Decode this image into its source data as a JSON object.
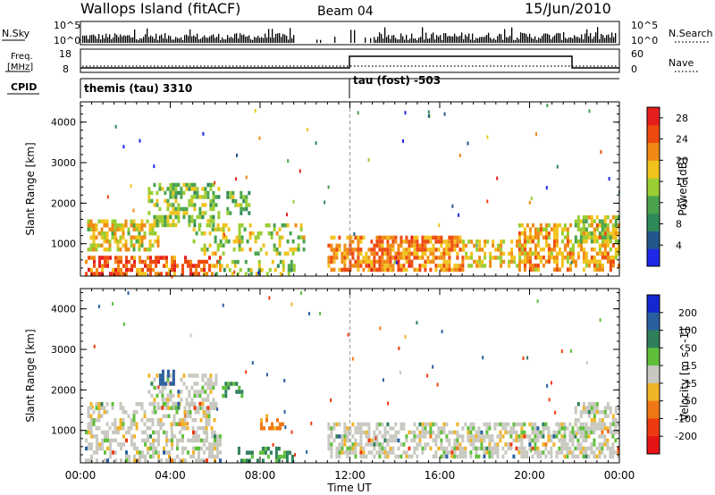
{
  "header": {
    "station": "Wallops Island (fitACF)",
    "beam": "Beam 04",
    "date": "15/Jun/2010"
  },
  "panels": {
    "nsky": {
      "label": "N.Sky",
      "ticks": [
        "10^5",
        "10^0"
      ],
      "right_ticks": [
        "10^5",
        "10^0"
      ],
      "right_label": "N.Search"
    },
    "freq": {
      "label_line1": "Freq.",
      "label_line2": "[MHz]",
      "ticks": [
        "18",
        "8"
      ],
      "right_ticks": [
        "60",
        "0"
      ],
      "right_label": "Nave"
    },
    "cpid": {
      "label": "CPID",
      "mode1": "themis (tau) 3310",
      "mode2": "tau (fost) -503"
    }
  },
  "colors": {
    "power_scale": [
      "#1e28e6",
      "#23578c",
      "#2f8a5a",
      "#4aa34c",
      "#9acd32",
      "#f2c31c",
      "#f08a14",
      "#ee4a10",
      "#e61e1e"
    ],
    "velocity_scale": [
      "#1428d2",
      "#2a5fa0",
      "#2e7f5a",
      "#5fbf3a",
      "#c8c8c0",
      "#f0b428",
      "#f07814",
      "#ee3a10",
      "#e61414"
    ],
    "ground_scatter": "#c0c0b8"
  },
  "chart_data": [
    {
      "type": "heatmap",
      "name": "power",
      "ylabel": "Slant Range [km]",
      "y_ticks": [
        1000,
        2000,
        3000,
        4000
      ],
      "ylim": [
        200,
        4500
      ],
      "colorbar_label": "Power [dB]",
      "colorbar_ticks": [
        4,
        8,
        12,
        16,
        20,
        24,
        28
      ],
      "colorbar_range": [
        0,
        30
      ],
      "regions": [
        {
          "t0": 0.2,
          "t1": 6.2,
          "r0": 300,
          "r1": 700,
          "v": 24,
          "d": 0.55
        },
        {
          "t0": 0.3,
          "t1": 3.5,
          "r0": 900,
          "r1": 1600,
          "v": 18,
          "d": 0.6
        },
        {
          "t0": 3.0,
          "t1": 6.2,
          "r0": 1500,
          "r1": 2500,
          "v": 14,
          "d": 0.5
        },
        {
          "t0": 5.0,
          "t1": 10.0,
          "r0": 800,
          "r1": 1500,
          "v": 16,
          "d": 0.35
        },
        {
          "t0": 6.5,
          "t1": 7.5,
          "r0": 1800,
          "r1": 2300,
          "v": 12,
          "d": 0.6
        },
        {
          "t0": 6.0,
          "t1": 9.5,
          "r0": 300,
          "r1": 600,
          "v": 14,
          "d": 0.35
        },
        {
          "t0": 11.0,
          "t1": 17.0,
          "r0": 400,
          "r1": 1200,
          "v": 22,
          "d": 0.7
        },
        {
          "t0": 17.0,
          "t1": 20.0,
          "r0": 500,
          "r1": 1100,
          "v": 18,
          "d": 0.5
        },
        {
          "t0": 19.5,
          "t1": 24.0,
          "r0": 400,
          "r1": 1500,
          "v": 20,
          "d": 0.55
        },
        {
          "t0": 22.0,
          "t1": 24.0,
          "r0": 1100,
          "r1": 1700,
          "v": 16,
          "d": 0.6
        }
      ]
    },
    {
      "type": "heatmap",
      "name": "velocity",
      "ylabel": "Slant Range [km]",
      "y_ticks": [
        1000,
        2000,
        3000,
        4000
      ],
      "ylim": [
        200,
        4500
      ],
      "colorbar_label": "Velocity [m s^-1]",
      "colorbar_ticks": [
        "200",
        "100",
        "50",
        "15",
        "-15",
        "-50",
        "-100",
        "-200"
      ],
      "colorbar_range": [
        -250,
        250
      ],
      "regions": [
        {
          "t0": 0.2,
          "t1": 6.2,
          "r0": 300,
          "r1": 1000,
          "v": 0,
          "d": 0.5
        },
        {
          "t0": 0.3,
          "t1": 6.0,
          "r0": 1100,
          "r1": 1700,
          "v": 0,
          "d": 0.45
        },
        {
          "t0": 3.0,
          "t1": 6.0,
          "r0": 1600,
          "r1": 2400,
          "v": 0,
          "d": 0.4
        },
        {
          "t0": 3.5,
          "t1": 4.2,
          "r0": 2200,
          "r1": 2500,
          "v": 180,
          "d": 0.6
        },
        {
          "t0": 6.3,
          "t1": 7.2,
          "r0": 1900,
          "r1": 2200,
          "v": 60,
          "d": 0.5
        },
        {
          "t0": 7.0,
          "t1": 9.5,
          "r0": 300,
          "r1": 600,
          "v": 60,
          "d": 0.4
        },
        {
          "t0": 8.0,
          "t1": 9.0,
          "r0": 1100,
          "r1": 1400,
          "v": -60,
          "d": 0.4
        },
        {
          "t0": 11.0,
          "t1": 24.0,
          "r0": 400,
          "r1": 1200,
          "v": 0,
          "d": 0.6
        },
        {
          "t0": 22.0,
          "t1": 24.0,
          "r0": 1200,
          "r1": 1700,
          "v": 0,
          "d": 0.6
        }
      ]
    }
  ],
  "time_axis": {
    "label": "Time UT",
    "ticks": [
      "00:00",
      "04:00",
      "08:00",
      "12:00",
      "16:00",
      "20:00",
      "00:00"
    ],
    "range_hours": [
      0,
      24
    ]
  }
}
